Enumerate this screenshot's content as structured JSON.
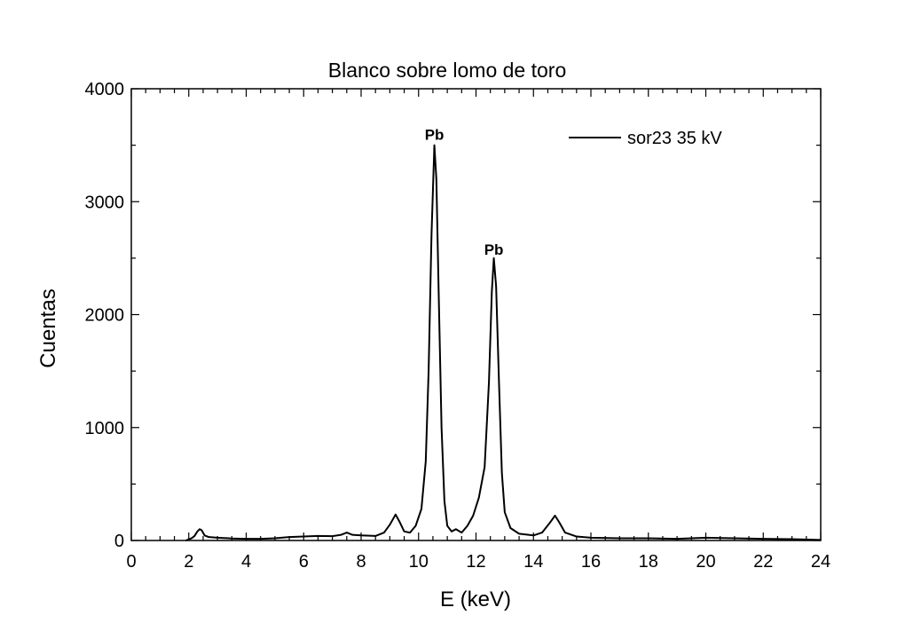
{
  "chart_data": {
    "type": "line",
    "title": "Blanco sobre lomo de toro",
    "xlabel": "E (keV)",
    "ylabel": "Cuentas",
    "xlim": [
      0,
      24
    ],
    "ylim": [
      0,
      4000
    ],
    "x_ticks": [
      0,
      2,
      4,
      6,
      8,
      10,
      12,
      14,
      16,
      18,
      20,
      22,
      24
    ],
    "y_ticks": [
      0,
      1000,
      2000,
      3000,
      4000
    ],
    "grid": false,
    "legend": {
      "position": "top-right",
      "entries": [
        "sor23 35 kV"
      ]
    },
    "annotations": [
      {
        "text": "Pb",
        "x": 10.55,
        "y": 3550
      },
      {
        "text": "Pb",
        "x": 12.62,
        "y": 2530
      }
    ],
    "series": [
      {
        "name": "sor23 35 kV",
        "color": "#000000",
        "points": [
          [
            1.9,
            0
          ],
          [
            2.0,
            10
          ],
          [
            2.1,
            20
          ],
          [
            2.2,
            40
          ],
          [
            2.3,
            80
          ],
          [
            2.38,
            100
          ],
          [
            2.45,
            90
          ],
          [
            2.55,
            45
          ],
          [
            2.7,
            30
          ],
          [
            3.0,
            25
          ],
          [
            3.5,
            18
          ],
          [
            4.0,
            15
          ],
          [
            4.5,
            15
          ],
          [
            5.0,
            20
          ],
          [
            5.5,
            30
          ],
          [
            6.0,
            35
          ],
          [
            6.5,
            40
          ],
          [
            7.0,
            38
          ],
          [
            7.3,
            50
          ],
          [
            7.5,
            70
          ],
          [
            7.7,
            50
          ],
          [
            8.0,
            45
          ],
          [
            8.5,
            40
          ],
          [
            8.8,
            70
          ],
          [
            9.0,
            140
          ],
          [
            9.2,
            230
          ],
          [
            9.35,
            160
          ],
          [
            9.5,
            80
          ],
          [
            9.7,
            70
          ],
          [
            9.9,
            130
          ],
          [
            10.1,
            280
          ],
          [
            10.25,
            700
          ],
          [
            10.35,
            1500
          ],
          [
            10.45,
            2700
          ],
          [
            10.55,
            3500
          ],
          [
            10.62,
            3200
          ],
          [
            10.7,
            2200
          ],
          [
            10.8,
            1000
          ],
          [
            10.9,
            350
          ],
          [
            11.0,
            130
          ],
          [
            11.15,
            80
          ],
          [
            11.3,
            100
          ],
          [
            11.5,
            70
          ],
          [
            11.7,
            130
          ],
          [
            11.9,
            220
          ],
          [
            12.1,
            380
          ],
          [
            12.3,
            650
          ],
          [
            12.45,
            1400
          ],
          [
            12.55,
            2200
          ],
          [
            12.62,
            2500
          ],
          [
            12.7,
            2250
          ],
          [
            12.8,
            1400
          ],
          [
            12.9,
            600
          ],
          [
            13.0,
            250
          ],
          [
            13.2,
            110
          ],
          [
            13.5,
            60
          ],
          [
            14.0,
            45
          ],
          [
            14.3,
            70
          ],
          [
            14.55,
            150
          ],
          [
            14.75,
            220
          ],
          [
            14.9,
            160
          ],
          [
            15.1,
            70
          ],
          [
            15.5,
            35
          ],
          [
            16.0,
            25
          ],
          [
            17.0,
            20
          ],
          [
            18.0,
            20
          ],
          [
            19.0,
            15
          ],
          [
            20.0,
            25
          ],
          [
            21.0,
            20
          ],
          [
            22.0,
            15
          ],
          [
            23.0,
            12
          ],
          [
            24.0,
            5
          ]
        ]
      }
    ]
  }
}
